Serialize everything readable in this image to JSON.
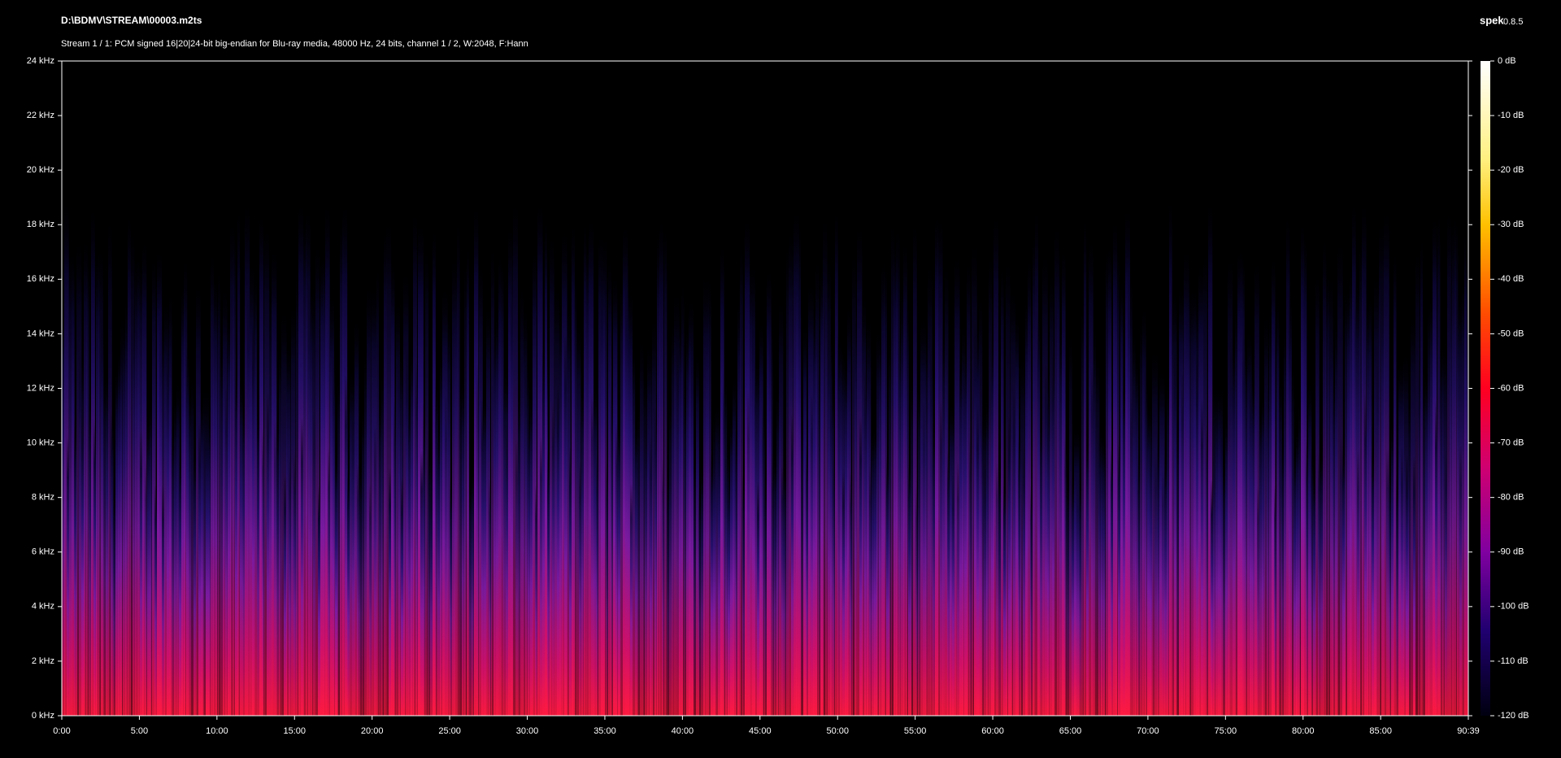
{
  "header": {
    "file": "D:\\BDMV\\STREAM\\00003.m2ts",
    "app": "spek",
    "version": "0.8.5",
    "stream": "Stream 1 / 1: PCM signed 16|20|24-bit big-endian for Blu-ray media, 48000 Hz, 24 bits, channel 1 / 2, W:2048, F:Hann"
  },
  "axes": {
    "y_labels": [
      "0 kHz",
      "2 kHz",
      "4 kHz",
      "6 kHz",
      "8 kHz",
      "10 kHz",
      "12 kHz",
      "14 kHz",
      "16 kHz",
      "18 kHz",
      "20 kHz",
      "22 kHz",
      "24 kHz"
    ],
    "x_labels": [
      "0:00",
      "5:00",
      "10:00",
      "15:00",
      "20:00",
      "25:00",
      "30:00",
      "35:00",
      "40:00",
      "45:00",
      "50:00",
      "55:00",
      "60:00",
      "65:00",
      "70:00",
      "75:00",
      "80:00",
      "85:00",
      "90:39"
    ]
  },
  "legend": {
    "labels": [
      "0 dB",
      "-10 dB",
      "-20 dB",
      "-30 dB",
      "-40 dB",
      "-50 dB",
      "-60 dB",
      "-70 dB",
      "-80 dB",
      "-90 dB",
      "-100 dB",
      "-110 dB",
      "-120 dB"
    ]
  }
}
